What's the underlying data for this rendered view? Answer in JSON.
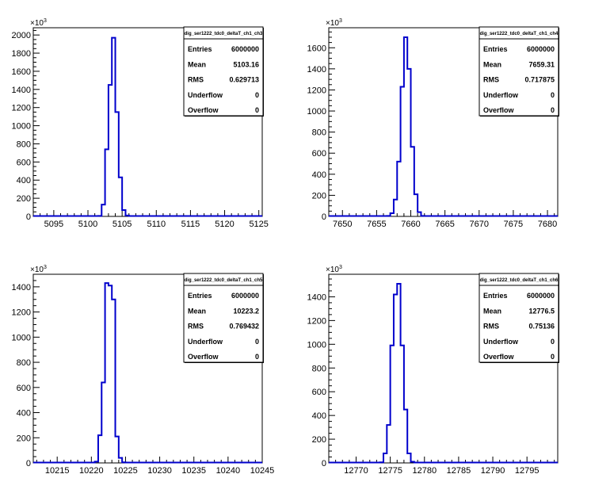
{
  "chart_data": [
    {
      "type": "bar",
      "title": "",
      "stats": {
        "name": "dig_ser1222_tdc0_deltaT_ch1_ch3",
        "rows": [
          {
            "label": "Entries",
            "value": "6000000"
          },
          {
            "label": "Mean",
            "value": "5103.16"
          },
          {
            "label": "RMS",
            "value": "0.629713"
          },
          {
            "label": "Underflow",
            "value": "0"
          },
          {
            "label": "Overflow",
            "value": "0"
          }
        ]
      },
      "multiplier": "×10³",
      "xlim": [
        5092,
        5125.5
      ],
      "ylim": [
        0,
        2080
      ],
      "xticks": [
        5095,
        5100,
        5105,
        5110,
        5115,
        5120,
        5125
      ],
      "yticks": [
        0,
        200,
        400,
        600,
        800,
        1000,
        1200,
        1400,
        1600,
        1800,
        2000
      ],
      "bin_start": 5101.5,
      "bin_width": 0.5,
      "values": [
        5,
        130,
        740,
        1450,
        1970,
        1150,
        430,
        70,
        10
      ]
    },
    {
      "type": "bar",
      "title": "",
      "stats": {
        "name": "dig_ser1222_tdc0_deltaT_ch1_ch4",
        "rows": [
          {
            "label": "Entries",
            "value": "6000000"
          },
          {
            "label": "Mean",
            "value": "7659.31"
          },
          {
            "label": "RMS",
            "value": "0.717875"
          },
          {
            "label": "Underflow",
            "value": "0"
          },
          {
            "label": "Overflow",
            "value": "0"
          }
        ]
      },
      "multiplier": "×10³",
      "xlim": [
        7648,
        7681.5
      ],
      "ylim": [
        0,
        1790
      ],
      "xticks": [
        7650,
        7655,
        7660,
        7665,
        7670,
        7675,
        7680
      ],
      "yticks": [
        0,
        200,
        400,
        600,
        800,
        1000,
        1200,
        1400,
        1600
      ],
      "bin_start": 7656.5,
      "bin_width": 0.5,
      "values": [
        5,
        30,
        160,
        520,
        1230,
        1700,
        1400,
        660,
        210,
        40,
        5
      ]
    },
    {
      "type": "bar",
      "title": "",
      "stats": {
        "name": "dig_ser1222_tdc0_deltaT_ch1_ch5",
        "rows": [
          {
            "label": "Entries",
            "value": "6000000"
          },
          {
            "label": "Mean",
            "value": "10223.2"
          },
          {
            "label": "RMS",
            "value": "0.769432"
          },
          {
            "label": "Underflow",
            "value": "0"
          },
          {
            "label": "Overflow",
            "value": "0"
          }
        ]
      },
      "multiplier": "×10³",
      "xlim": [
        10211.5,
        10245
      ],
      "ylim": [
        0,
        1500
      ],
      "xticks": [
        10215,
        10220,
        10225,
        10230,
        10235,
        10240,
        10245
      ],
      "yticks": [
        0,
        200,
        400,
        600,
        800,
        1000,
        1200,
        1400
      ],
      "bin_start": 10220.5,
      "bin_width": 0.5,
      "values": [
        10,
        220,
        640,
        1430,
        1410,
        1300,
        210,
        40,
        5
      ]
    },
    {
      "type": "bar",
      "title": "",
      "stats": {
        "name": "dig_ser1222_tdc0_deltaT_ch1_ch6",
        "rows": [
          {
            "label": "Entries",
            "value": "6000000"
          },
          {
            "label": "Mean",
            "value": "12776.5"
          },
          {
            "label": "RMS",
            "value": "0.75136"
          },
          {
            "label": "Underflow",
            "value": "0"
          },
          {
            "label": "Overflow",
            "value": "0"
          }
        ]
      },
      "multiplier": "×10³",
      "xlim": [
        12766,
        12799.5
      ],
      "ylim": [
        0,
        1590
      ],
      "xticks": [
        12770,
        12775,
        12780,
        12785,
        12790,
        12795
      ],
      "yticks": [
        0,
        200,
        400,
        600,
        800,
        1000,
        1200,
        1400
      ],
      "bin_start": 12773.5,
      "bin_width": 0.5,
      "values": [
        5,
        80,
        320,
        990,
        1420,
        1510,
        990,
        450,
        80,
        10
      ]
    }
  ]
}
